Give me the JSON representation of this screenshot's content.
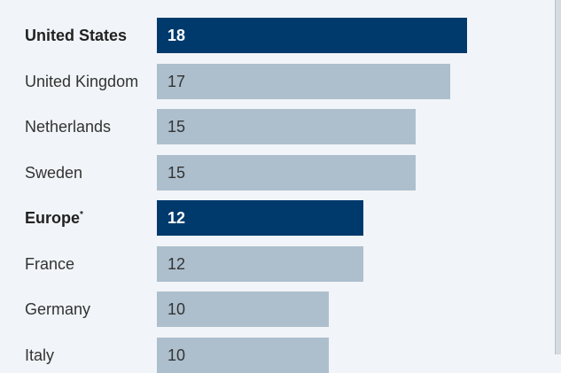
{
  "colors": {
    "background": "#f1f4f8",
    "highlight_bar": "#003a6d",
    "normal_bar": "#adbfcd"
  },
  "chart_data": {
    "type": "bar",
    "orientation": "horizontal",
    "categories": [
      "United States",
      "United Kingdom",
      "Netherlands",
      "Sweden",
      "Europe",
      "France",
      "Germany",
      "Italy"
    ],
    "category_superscripts": [
      "",
      "",
      "",
      "",
      "*",
      "",
      "",
      ""
    ],
    "values": [
      18,
      17,
      15,
      15,
      12,
      12,
      10,
      10
    ],
    "highlighted": [
      true,
      false,
      false,
      false,
      true,
      false,
      false,
      false
    ],
    "xlim": [
      0,
      18
    ],
    "grid": false,
    "legend": "none"
  }
}
